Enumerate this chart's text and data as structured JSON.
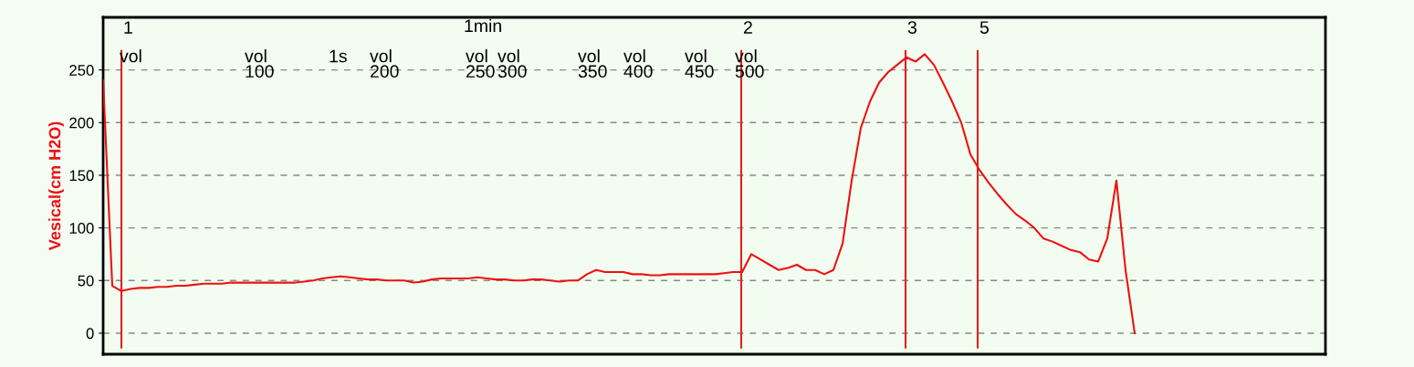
{
  "chart_data": {
    "type": "line",
    "ylabel": "Vesical(cm H2O)",
    "ylim": [
      -20,
      300
    ],
    "yticks": [
      0,
      50,
      100,
      150,
      200,
      250
    ],
    "tick_labels": "y",
    "grid": "y",
    "line_style": "solid",
    "marker": "none",
    "categories": [
      null,
      null,
      null,
      null,
      null,
      null,
      null,
      null,
      null,
      null,
      null,
      null,
      null,
      null,
      null,
      null,
      null,
      null,
      null,
      null,
      null,
      null,
      null,
      null,
      null,
      null,
      null,
      null,
      null,
      null,
      null,
      null,
      null,
      null,
      null,
      null,
      null,
      null,
      null,
      null,
      null,
      null,
      null,
      null,
      null,
      null,
      null,
      null,
      null,
      null,
      null,
      null,
      null,
      null,
      null,
      null,
      null,
      null,
      null,
      null,
      null,
      null,
      null,
      null,
      null,
      null,
      null,
      null,
      null,
      null,
      null,
      null,
      null,
      null,
      null,
      null,
      null,
      null,
      null,
      null,
      null,
      null,
      null,
      null,
      null,
      null,
      null,
      null,
      null,
      null,
      null,
      null,
      null,
      null,
      null,
      null,
      null,
      null,
      null,
      null,
      null,
      null,
      null,
      null,
      null,
      null,
      null,
      null,
      null,
      null,
      null,
      null,
      null,
      null,
      null,
      null,
      null,
      null,
      null,
      null,
      null,
      null,
      null,
      null,
      null,
      null,
      null,
      null,
      null,
      null,
      null,
      null,
      null,
      null
    ],
    "series": [
      {
        "color": "#ee1111",
        "values": [
          240,
          45,
          40,
          42,
          43,
          43,
          44,
          44,
          45,
          45,
          46,
          47,
          47,
          47,
          48,
          48,
          48,
          48,
          48,
          48,
          48,
          48,
          49,
          50,
          52,
          53,
          54,
          53,
          52,
          51,
          51,
          50,
          50,
          50,
          48,
          49,
          51,
          52,
          52,
          52,
          52,
          53,
          52,
          51,
          51,
          50,
          50,
          51,
          51,
          50,
          49,
          50,
          50,
          56,
          60,
          58,
          58,
          58,
          56,
          56,
          55,
          55,
          56,
          56,
          56,
          56,
          56,
          56,
          57,
          58,
          58,
          75,
          70,
          65,
          60,
          62,
          65,
          60,
          60,
          56,
          60,
          85,
          145,
          195,
          220,
          238,
          248,
          255,
          262,
          258,
          265,
          255,
          238,
          220,
          200,
          170,
          155,
          143,
          132,
          122,
          113,
          107,
          100,
          90,
          87,
          83,
          79,
          77,
          70,
          68,
          90,
          145,
          60,
          0,
          null,
          null,
          null,
          null,
          null,
          null,
          null,
          null,
          null,
          null,
          null,
          null,
          null,
          null,
          null,
          null,
          null,
          null,
          null,
          null
        ]
      }
    ],
    "annotations": [
      "1",
      "vol",
      "vol\n100",
      "1s",
      "vol\n200",
      "1min",
      "vol\n250",
      "vol\n300",
      "vol\n350",
      "vol\n400",
      "vol\n450",
      "2",
      "vol\n500",
      "3",
      "5"
    ]
  }
}
